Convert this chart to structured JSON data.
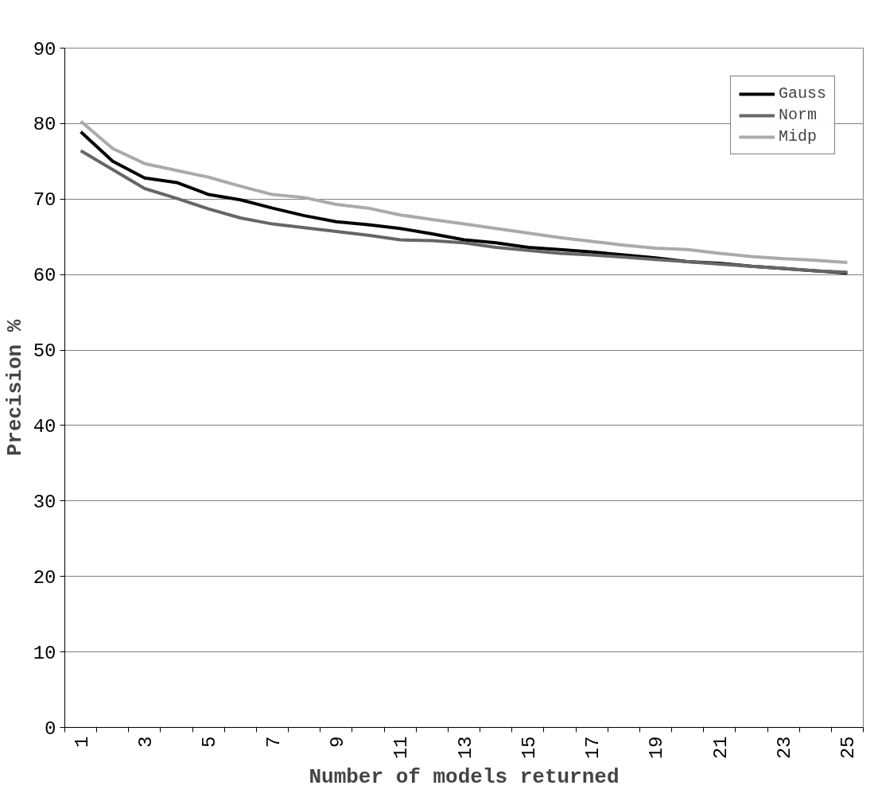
{
  "chart_data": {
    "type": "line",
    "xlabel": "Number of models returned",
    "ylabel": "Precision %",
    "categories": [
      "1",
      null,
      "3",
      null,
      "5",
      null,
      "7",
      null,
      "9",
      null,
      "11",
      null,
      "13",
      null,
      "15",
      null,
      "17",
      null,
      "19",
      null,
      "21",
      null,
      "23",
      null,
      "25"
    ],
    "series": [
      {
        "name": "Gauss",
        "color": "#000000",
        "values": [
          78.9,
          75.0,
          72.8,
          72.2,
          70.6,
          69.9,
          68.8,
          67.8,
          67.0,
          66.6,
          66.1,
          65.4,
          64.6,
          64.2,
          63.6,
          63.3,
          63.0,
          62.6,
          62.2,
          61.7,
          61.5,
          61.1,
          60.8,
          60.5,
          60.2
        ]
      },
      {
        "name": "Norm",
        "color": "#666666",
        "values": [
          76.4,
          73.9,
          71.4,
          70.1,
          68.7,
          67.5,
          66.7,
          66.2,
          65.7,
          65.2,
          64.6,
          64.5,
          64.2,
          63.6,
          63.2,
          62.8,
          62.6,
          62.3,
          62.0,
          61.7,
          61.4,
          61.1,
          60.8,
          60.5,
          60.3
        ]
      },
      {
        "name": "Midp",
        "color": "#aaaaaa",
        "values": [
          80.3,
          76.7,
          74.7,
          73.8,
          72.9,
          71.7,
          70.6,
          70.2,
          69.3,
          68.8,
          67.9,
          67.3,
          66.7,
          66.1,
          65.5,
          64.9,
          64.4,
          63.9,
          63.5,
          63.3,
          62.8,
          62.4,
          62.1,
          61.9,
          61.6
        ]
      }
    ],
    "ylim": [
      0,
      90
    ],
    "yticks": [
      0,
      10,
      20,
      30,
      40,
      50,
      60,
      70,
      80,
      90
    ],
    "grid": "y",
    "legend": "top right",
    "marker": "none",
    "line_style": "solid"
  }
}
